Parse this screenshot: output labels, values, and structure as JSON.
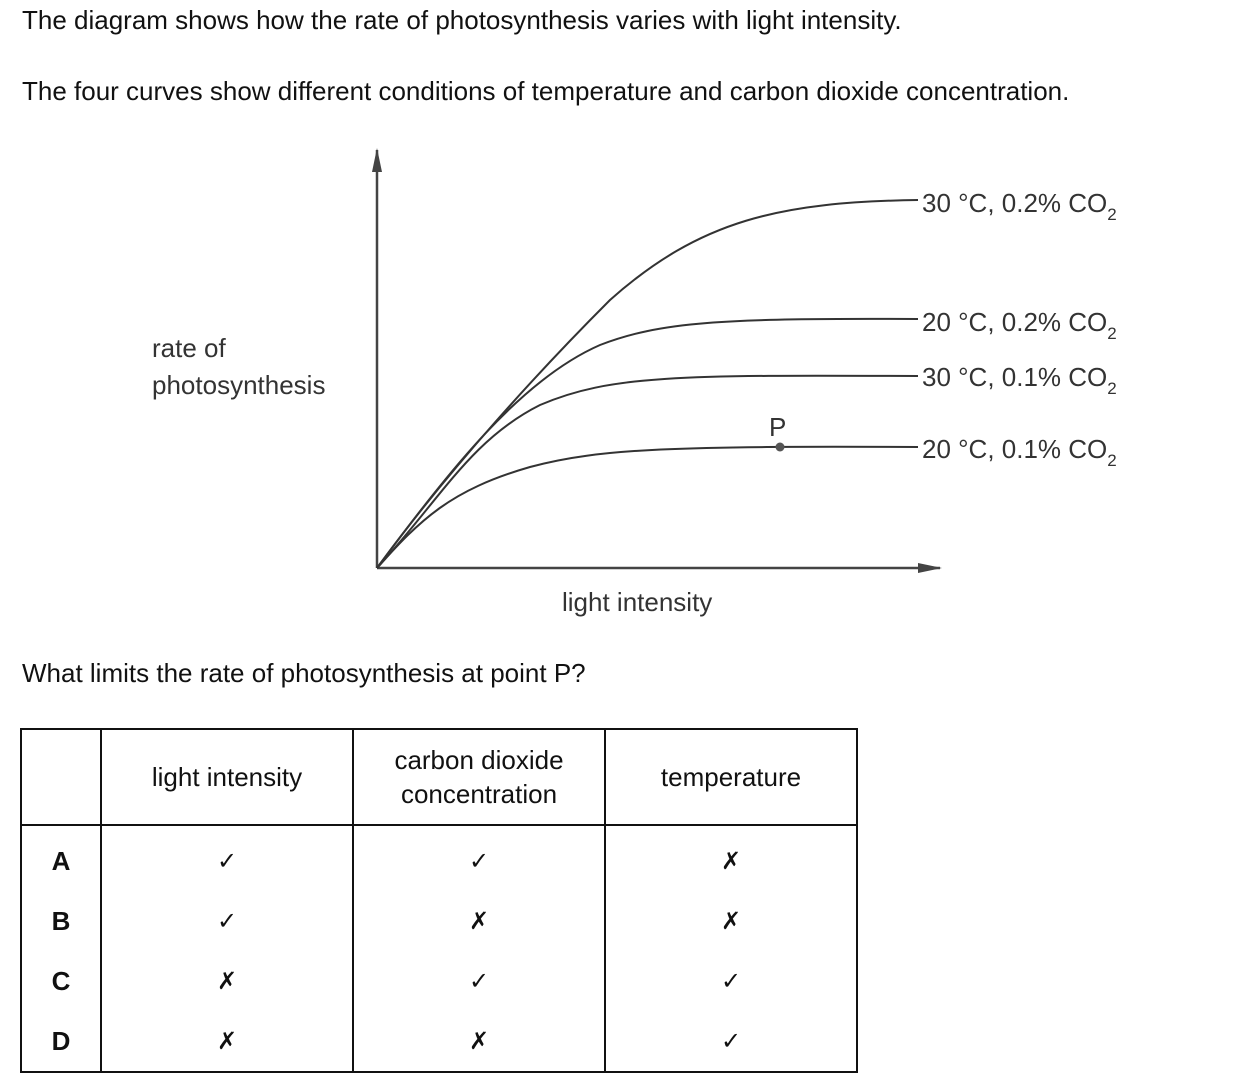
{
  "intro_line_1": "The diagram shows how the rate of photosynthesis varies with light intensity.",
  "intro_line_2": "The four curves show different conditions of temperature and carbon dioxide concentration.",
  "graph": {
    "y_axis_label_line_1": "rate of",
    "y_axis_label_line_2": "photosynthesis",
    "x_axis_label": "light intensity",
    "point_label": "P",
    "curves": [
      {
        "label": "30 °C, 0.2% CO",
        "subscript": "2"
      },
      {
        "label": "20 °C, 0.2% CO",
        "subscript": "2"
      },
      {
        "label": "30 °C, 0.1% CO",
        "subscript": "2"
      },
      {
        "label": "20 °C, 0.1% CO",
        "subscript": "2"
      }
    ]
  },
  "question": "What limits the rate of photosynthesis at point P?",
  "table": {
    "headers": {
      "light_intensity": "light intensity",
      "co2_line_1": "carbon dioxide",
      "co2_line_2": "concentration",
      "temperature": "temperature"
    },
    "rows": [
      {
        "key": "A",
        "light_intensity": "✓",
        "co2": "✓",
        "temperature": "✗"
      },
      {
        "key": "B",
        "light_intensity": "✓",
        "co2": "✗",
        "temperature": "✗"
      },
      {
        "key": "C",
        "light_intensity": "✗",
        "co2": "✓",
        "temperature": "✓"
      },
      {
        "key": "D",
        "light_intensity": "✗",
        "co2": "✗",
        "temperature": "✓"
      }
    ]
  }
}
